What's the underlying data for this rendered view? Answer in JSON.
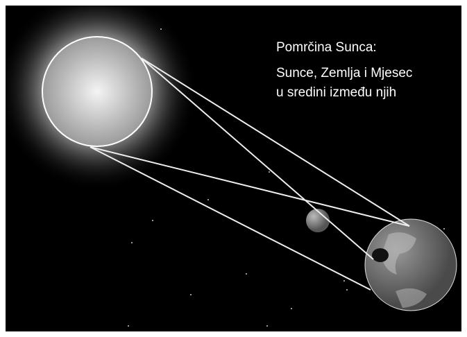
{
  "title": "Pomrčina Sunca:",
  "caption_lines": [
    "Sunce, Zemlja i Mjesec",
    "u sredini između njih"
  ]
}
